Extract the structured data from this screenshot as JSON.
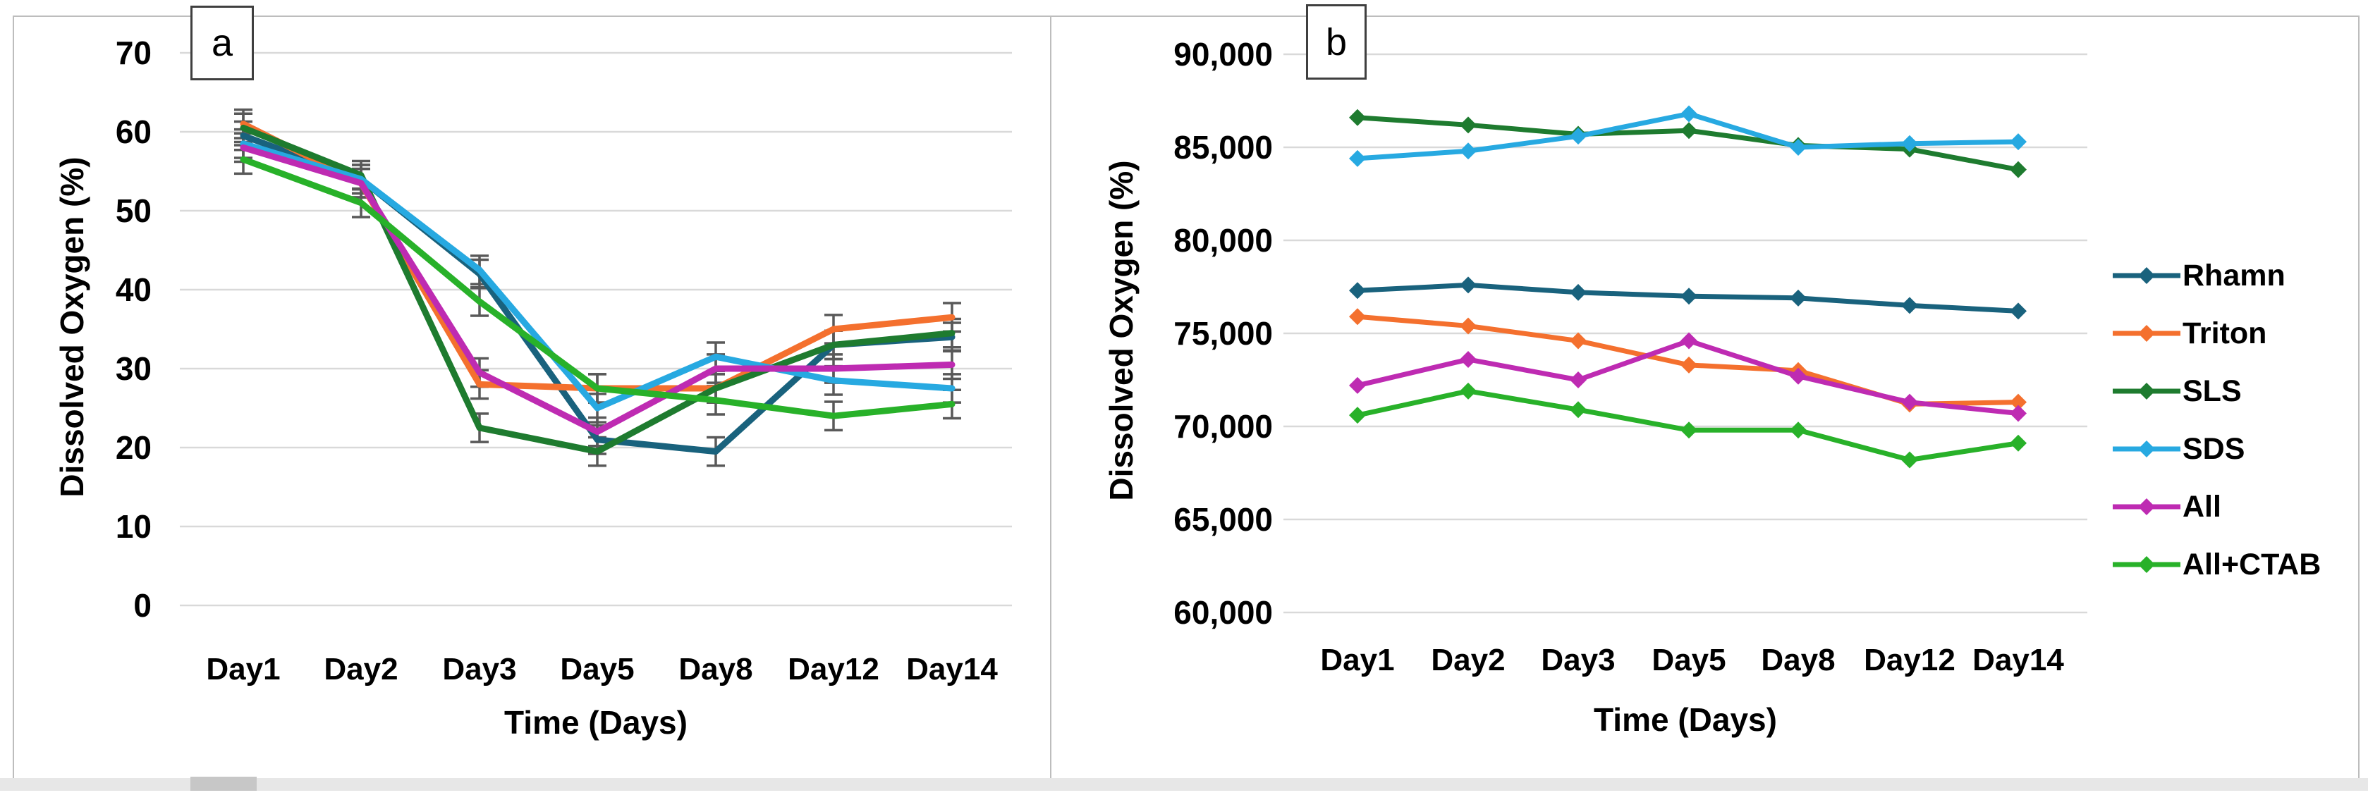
{
  "figure": {
    "panel_a_label": "a",
    "panel_b_label": "b",
    "background": "#ffffff",
    "border_color": "#bdbdbd",
    "gridline_color": "#d9d9d9",
    "error_bar_color": "#595959",
    "text_color": "#000000",
    "bottom_band_color": "#e7e7e7"
  },
  "chart_data": [
    {
      "id": "a",
      "type": "line",
      "panel_label": "a",
      "title": "",
      "xlabel": "Time (Days)",
      "ylabel": "Dissolved Oxygen (%)",
      "categories": [
        "Day1",
        "Day2",
        "Day3",
        "Day5",
        "Day8",
        "Day12",
        "Day14"
      ],
      "ylim": [
        0,
        70
      ],
      "ytick_step": 10,
      "ytick_labels": [
        "0",
        "10",
        "20",
        "30",
        "40",
        "50",
        "60",
        "70"
      ],
      "grid": true,
      "legend_position": "none",
      "marker": "none",
      "error_bars": true,
      "error_approx": 1.8,
      "series": [
        {
          "name": "Rhamn",
          "color": "#19627d",
          "values": [
            59.5,
            54,
            42,
            21,
            19.5,
            33,
            34
          ]
        },
        {
          "name": "Triton",
          "color": "#f4702e",
          "values": [
            61,
            53.5,
            28,
            27.5,
            27.5,
            35,
            36.5
          ]
        },
        {
          "name": "SLS",
          "color": "#1e7b2f",
          "values": [
            60.5,
            54.5,
            22.5,
            19.5,
            27.5,
            33,
            34.5
          ]
        },
        {
          "name": "SDS",
          "color": "#27a9e1",
          "values": [
            58.5,
            54,
            42.5,
            25,
            31.5,
            28.5,
            27.5
          ]
        },
        {
          "name": "All",
          "color": "#be2bb2",
          "values": [
            58,
            53.5,
            29.5,
            22,
            30,
            30,
            30.5
          ]
        },
        {
          "name": "All+CTAB",
          "color": "#28b129",
          "values": [
            56.5,
            51,
            38.5,
            27.5,
            26,
            24,
            25.5
          ]
        }
      ]
    },
    {
      "id": "b",
      "type": "line",
      "panel_label": "b",
      "title": "",
      "xlabel": "Time (Days)",
      "ylabel": "Dissolved Oxygen (%)",
      "categories": [
        "Day1",
        "Day2",
        "Day3",
        "Day5",
        "Day8",
        "Day12",
        "Day14"
      ],
      "ylim": [
        60000,
        90000
      ],
      "ytick_step": 5000,
      "ytick_labels": [
        "60,000",
        "65,000",
        "70,000",
        "75,000",
        "80,000",
        "85,000",
        "90,000"
      ],
      "grid": true,
      "legend_position": "right",
      "marker": "diamond",
      "error_bars": false,
      "legend": [
        "Rhamn",
        "Triton",
        "SLS",
        "SDS",
        "All",
        "All+CTAB"
      ],
      "series": [
        {
          "name": "Rhamn",
          "color": "#19627d",
          "values": [
            77300,
            77600,
            77200,
            77000,
            76900,
            76500,
            76200
          ]
        },
        {
          "name": "Triton",
          "color": "#f4702e",
          "values": [
            75900,
            75400,
            74600,
            73300,
            73000,
            71200,
            71300
          ]
        },
        {
          "name": "SLS",
          "color": "#1e7b2f",
          "values": [
            86600,
            86200,
            85700,
            85900,
            85100,
            84900,
            83800
          ]
        },
        {
          "name": "SDS",
          "color": "#27a9e1",
          "values": [
            84400,
            84800,
            85600,
            86800,
            85000,
            85200,
            85300
          ]
        },
        {
          "name": "All",
          "color": "#be2bb2",
          "values": [
            72200,
            73600,
            72500,
            74600,
            72700,
            71300,
            70700
          ]
        },
        {
          "name": "All+CTAB",
          "color": "#28b129",
          "values": [
            70600,
            71900,
            70900,
            69800,
            69800,
            68200,
            69100
          ]
        }
      ]
    }
  ]
}
